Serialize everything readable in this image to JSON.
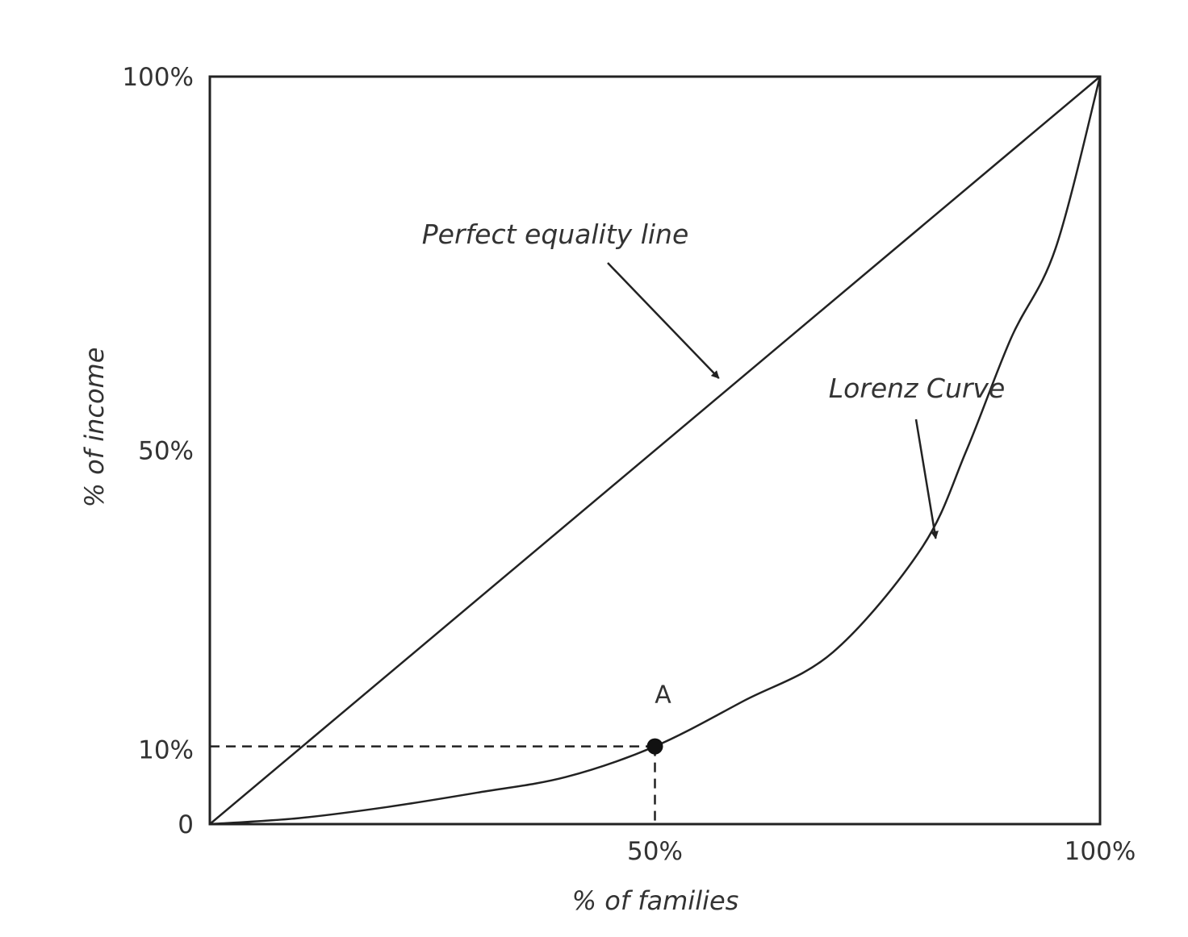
{
  "chart_data": {
    "type": "line",
    "title": "",
    "xlabel": "% of families",
    "ylabel": "% of income",
    "xlim": [
      0,
      100
    ],
    "ylim": [
      0,
      100
    ],
    "x_ticks": [
      {
        "value": 50,
        "label": "50%"
      },
      {
        "value": 100,
        "label": "100%"
      }
    ],
    "y_ticks": [
      {
        "value": 0,
        "label": "0"
      },
      {
        "value": 10,
        "label": "10%"
      },
      {
        "value": 50,
        "label": "50%"
      },
      {
        "value": 100,
        "label": "100%"
      }
    ],
    "grid": false,
    "series": [
      {
        "x": [
          0,
          100
        ],
        "y": [
          0,
          100
        ]
      },
      {
        "x": [
          0,
          10,
          20,
          30,
          40,
          50,
          60,
          70,
          80,
          85,
          90,
          95,
          100
        ],
        "y": [
          0,
          0.8,
          2.3,
          4.2,
          6.3,
          10.4,
          16.5,
          23,
          37,
          50,
          65,
          77,
          100
        ]
      }
    ],
    "annotations": [
      {
        "text": "Perfect equality line",
        "arrow_to": [
          57,
          59
        ]
      },
      {
        "text": "Lorenz Curve",
        "arrow_to": [
          81,
          38
        ]
      }
    ],
    "highlight_point": {
      "label": "A",
      "x": 50,
      "y": 10.4
    }
  }
}
